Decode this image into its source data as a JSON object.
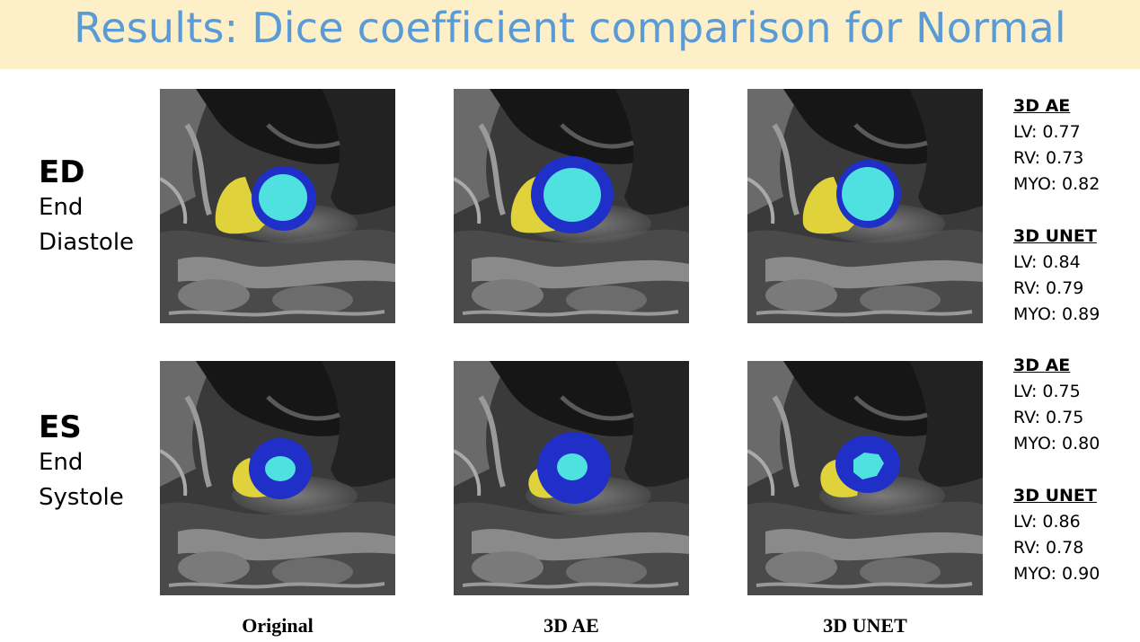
{
  "title": "Results: Dice coefficient comparison for Normal",
  "rows": [
    {
      "abbr": "ED",
      "line1": "End",
      "line2": "Diastole"
    },
    {
      "abbr": "ES",
      "line1": "End",
      "line2": "Systole"
    }
  ],
  "columns": [
    "Original",
    "3D AE",
    "3D UNET"
  ],
  "segmentation_colors": {
    "LV": "#4fe0e0",
    "RV": "#e0d23a",
    "MYO": "#1f2fc8"
  },
  "metrics": [
    {
      "ae": {
        "label": "3D AE",
        "lv": "LV: 0.77",
        "rv": "RV: 0.73",
        "myo": "MYO: 0.82"
      },
      "unet": {
        "label": "3D UNET",
        "lv": "LV: 0.84",
        "rv": "RV: 0.79",
        "myo": "MYO: 0.89"
      }
    },
    {
      "ae": {
        "label": "3D AE",
        "lv": "LV: 0.75",
        "rv": "RV: 0.75",
        "myo": "MYO: 0.80"
      },
      "unet": {
        "label": "3D UNET",
        "lv": "LV: 0.86",
        "rv": "RV: 0.78",
        "myo": "MYO: 0.90"
      }
    }
  ]
}
